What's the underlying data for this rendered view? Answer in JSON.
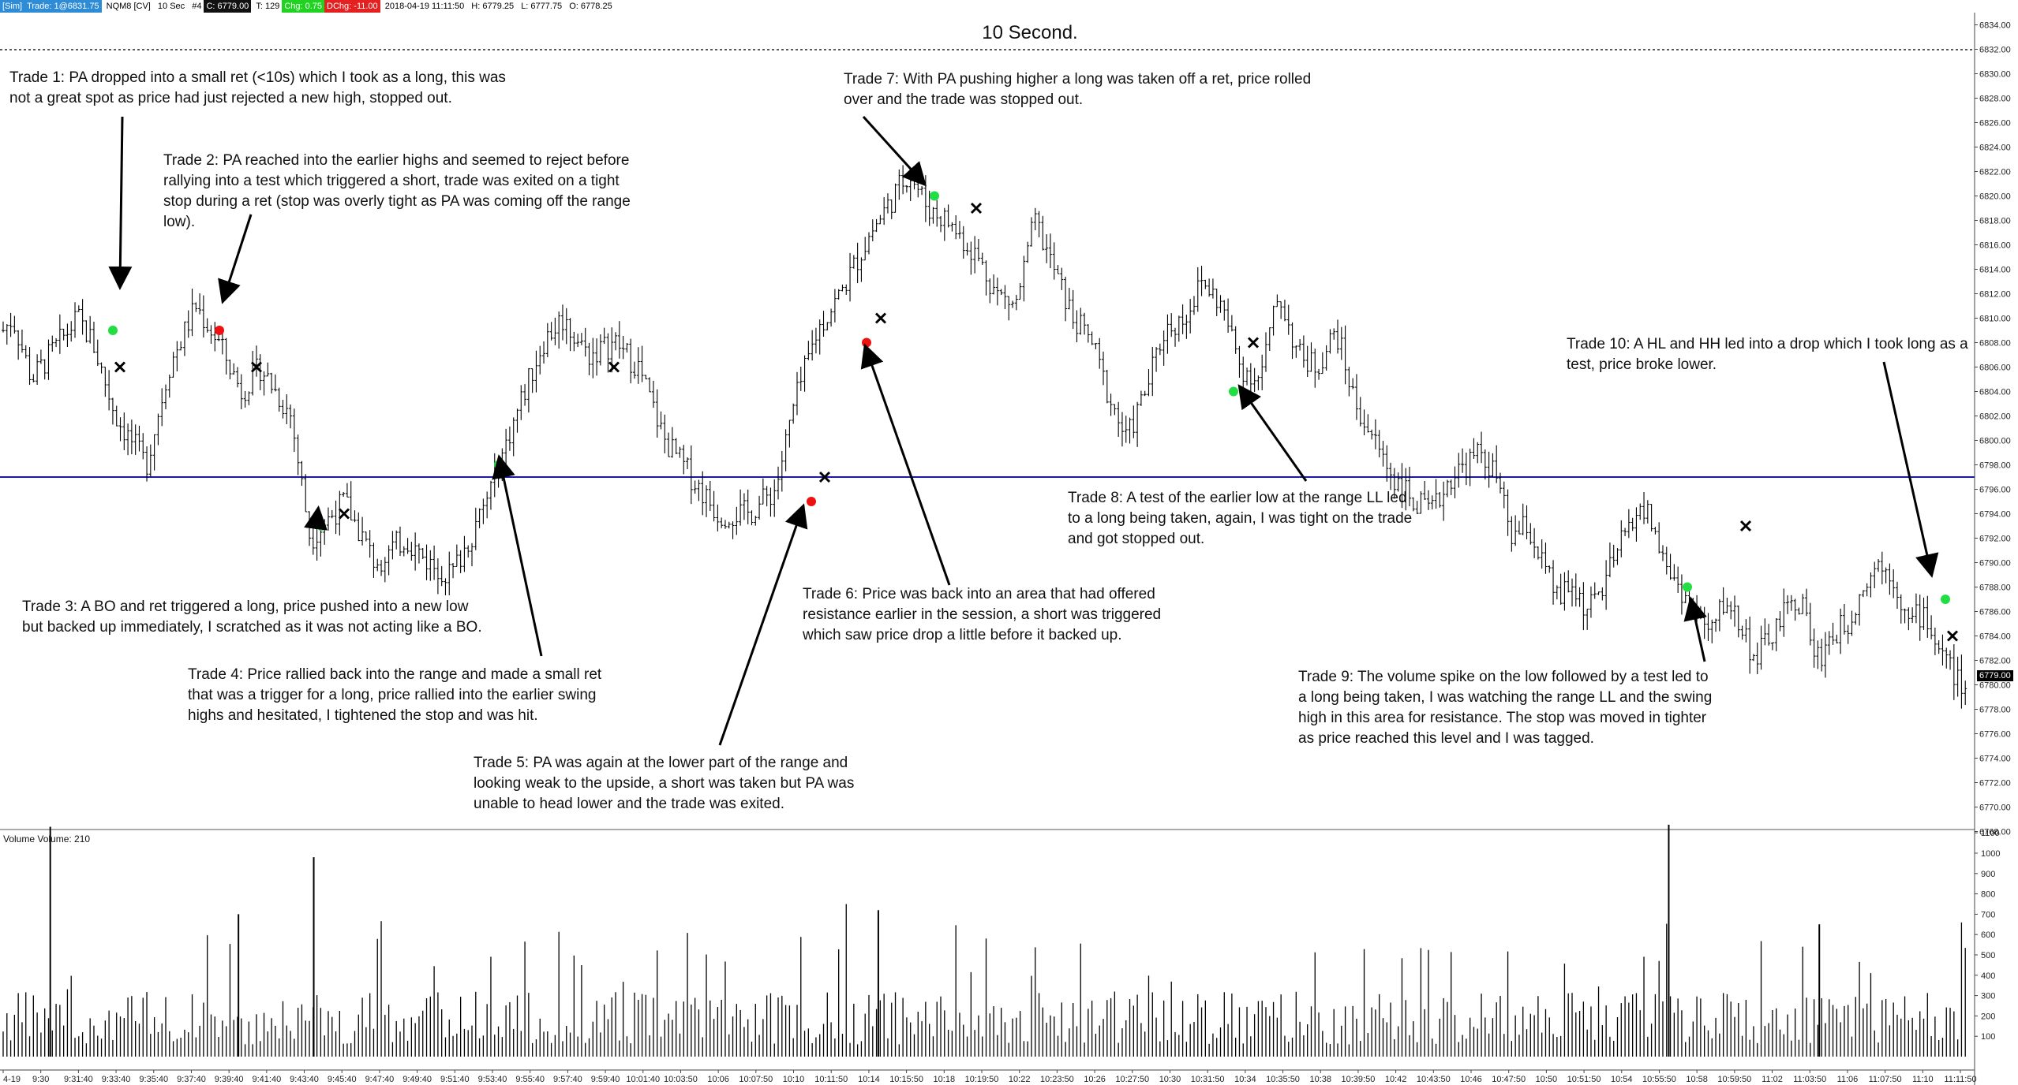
{
  "header": {
    "account": "[Sim]",
    "trade": "Trade: 1@6831.75",
    "instrument": "NQM8 [CV]",
    "period": "10 Sec",
    "bars_tag": "#4",
    "close": "C: 6779.00",
    "ticks": "T: 129",
    "chg": "Chg: 0.75",
    "dchg": "DChg: -11.00",
    "datetime": "2018-04-19 11:11:50",
    "high": "H: 6779.25",
    "low": "L: 6777.75",
    "open": "O: 6778.25"
  },
  "chart_data": [
    {
      "type": "candlestick",
      "title": "10 Second.",
      "ylim": [
        6766,
        6836
      ],
      "y_ticks": [
        "6834.00",
        "6832.00",
        "6830.00",
        "6828.00",
        "6826.00",
        "6824.00",
        "6822.00",
        "6820.00",
        "6818.00",
        "6816.00",
        "6814.00",
        "6812.00",
        "6810.00",
        "6808.00",
        "6806.00",
        "6804.00",
        "6802.00",
        "6800.00",
        "6798.00",
        "6796.00",
        "6794.00",
        "6792.00",
        "6790.00",
        "6788.00",
        "6786.00",
        "6784.00",
        "6782.00",
        "6780.00",
        "6778.00",
        "6776.00",
        "6774.00",
        "6772.00",
        "6770.00",
        "6768.00"
      ],
      "last_price": "6779.00",
      "horizontal_line": 6797,
      "price_path": [
        [
          9.25,
          6809
        ],
        [
          9.5,
          6810
        ],
        [
          9.8,
          6807
        ],
        [
          10.0,
          6805
        ],
        [
          11.2,
          6810
        ],
        [
          11.6,
          6808
        ],
        [
          12.2,
          6802
        ],
        [
          13.0,
          6798
        ],
        [
          13.6,
          6806
        ],
        [
          14.3,
          6811
        ],
        [
          14.9,
          6808
        ],
        [
          15.5,
          6804
        ],
        [
          16.0,
          6806
        ],
        [
          16.8,
          6802
        ],
        [
          17.3,
          6792
        ],
        [
          18.2,
          6795
        ],
        [
          19.0,
          6790
        ],
        [
          19.8,
          6792
        ],
        [
          20.4,
          6790
        ],
        [
          21.0,
          6789
        ],
        [
          21.8,
          6794
        ],
        [
          22.8,
          6803
        ],
        [
          23.4,
          6808
        ],
        [
          23.9,
          6810
        ],
        [
          24.6,
          6807
        ],
        [
          25.3,
          6808
        ],
        [
          25.9,
          6806
        ],
        [
          26.6,
          6800
        ],
        [
          27.3,
          6797
        ],
        [
          28.0,
          6794
        ],
        [
          28.8,
          6794
        ],
        [
          29.5,
          6796
        ],
        [
          30.0,
          6803
        ],
        [
          30.6,
          6809
        ],
        [
          31.2,
          6812
        ],
        [
          32.0,
          6817
        ],
        [
          32.6,
          6820
        ],
        [
          33.0,
          6822
        ],
        [
          33.5,
          6819
        ],
        [
          34.0,
          6818
        ],
        [
          34.8,
          6815
        ],
        [
          35.3,
          6812
        ],
        [
          35.8,
          6811
        ],
        [
          36.3,
          6818
        ],
        [
          36.8,
          6814
        ],
        [
          37.3,
          6810
        ],
        [
          37.8,
          6808
        ],
        [
          38.2,
          6804
        ],
        [
          38.7,
          6800
        ],
        [
          39.2,
          6804
        ],
        [
          39.7,
          6809
        ],
        [
          40.2,
          6810
        ],
        [
          40.7,
          6813
        ],
        [
          41.2,
          6811
        ],
        [
          41.7,
          6806
        ],
        [
          42.2,
          6805
        ],
        [
          42.7,
          6812
        ],
        [
          43.2,
          6807
        ],
        [
          43.7,
          6806
        ],
        [
          44.2,
          6809
        ],
        [
          44.7,
          6803
        ],
        [
          45.2,
          6800
        ],
        [
          45.7,
          6797
        ],
        [
          46.2,
          6795
        ],
        [
          46.7,
          6794
        ],
        [
          47.2,
          6797
        ],
        [
          47.6,
          6798
        ],
        [
          48.0,
          6799
        ],
        [
          48.4,
          6797
        ],
        [
          48.8,
          6792
        ],
        [
          49.2,
          6793
        ],
        [
          49.6,
          6790
        ],
        [
          50.0,
          6787
        ],
        [
          50.4,
          6788
        ],
        [
          50.8,
          6786
        ],
        [
          51.2,
          6788
        ],
        [
          51.6,
          6791
        ],
        [
          52.0,
          6794
        ],
        [
          52.4,
          6794
        ],
        [
          52.8,
          6790
        ],
        [
          53.2,
          6788
        ],
        [
          53.6,
          6786
        ],
        [
          54.0,
          6784
        ],
        [
          54.4,
          6787
        ],
        [
          54.8,
          6785
        ],
        [
          55.2,
          6782
        ],
        [
          55.6,
          6784
        ],
        [
          56.0,
          6786
        ],
        [
          56.4,
          6787
        ],
        [
          56.8,
          6782
        ],
        [
          57.2,
          6784
        ],
        [
          57.6,
          6785
        ],
        [
          58.0,
          6788
        ],
        [
          58.4,
          6790
        ],
        [
          58.8,
          6789
        ],
        [
          59.2,
          6785
        ],
        [
          59.6,
          6786
        ],
        [
          60.0,
          6783
        ],
        [
          60.4,
          6781
        ],
        [
          60.7,
          6779
        ]
      ],
      "x_ticks": [
        "4-19",
        "9:30",
        "9:31:40",
        "9:33:40",
        "9:35:40",
        "9:37:40",
        "9:39:40",
        "9:41:40",
        "9:43:40",
        "9:45:40",
        "9:47:40",
        "9:49:40",
        "9:51:40",
        "9:53:40",
        "9:55:40",
        "9:57:40",
        "9:59:40",
        "10:01:40",
        "10:03:50",
        "10:06",
        "10:07:50",
        "10:10",
        "10:11:50",
        "10:14",
        "10:15:50",
        "10:18",
        "10:19:50",
        "10:22",
        "10:23:50",
        "10:26",
        "10:27:50",
        "10:30",
        "10:31:50",
        "10:34",
        "10:35:50",
        "10:38",
        "10:39:50",
        "10:42",
        "10:43:50",
        "10:46",
        "10:47:50",
        "10:50",
        "10:51:50",
        "10:54",
        "10:55:50",
        "10:58",
        "10:59:50",
        "11:02",
        "11:03:50",
        "11:06",
        "11:07:50",
        "11:10",
        "11:11:50"
      ],
      "trades": [
        {
          "n": 1,
          "dir": "long",
          "entry": 6809,
          "exit": 6806
        },
        {
          "n": 2,
          "dir": "short",
          "entry": 6809,
          "exit": 6806
        },
        {
          "n": 3,
          "dir": "long",
          "entry": 6793,
          "exit": 6794
        },
        {
          "n": 4,
          "dir": "long",
          "entry": 6798,
          "exit": 6806
        },
        {
          "n": 5,
          "dir": "short",
          "entry": 6795,
          "exit": 6797
        },
        {
          "n": 6,
          "dir": "short",
          "entry": 6808,
          "exit": 6810
        },
        {
          "n": 7,
          "dir": "long",
          "entry": 6820,
          "exit": 6819
        },
        {
          "n": 8,
          "dir": "long",
          "entry": 6804,
          "exit": 6808
        },
        {
          "n": 9,
          "dir": "long",
          "entry": 6788,
          "exit": 6793
        },
        {
          "n": 10,
          "dir": "long",
          "entry": 6787,
          "exit": 6784
        }
      ]
    },
    {
      "type": "bar",
      "title": "Volume  Volume: 210",
      "ylim": [
        0,
        1200
      ],
      "y_ticks": [
        "1100",
        "1000",
        "900",
        "800",
        "700",
        "600",
        "500",
        "400",
        "300",
        "200",
        "100"
      ],
      "notable_spikes": [
        {
          "time": "9:30",
          "value": 1130
        },
        {
          "time": "9:43:40",
          "value": 980
        },
        {
          "time": "9:39:40",
          "value": 700
        },
        {
          "time": "10:14",
          "value": 720
        },
        {
          "time": "10:55:50",
          "value": 1140
        },
        {
          "time": "11:03:50",
          "value": 650
        }
      ]
    }
  ],
  "annotations": [
    {
      "id": "trade-1",
      "lines": [
        "Trade 1:  PA dropped into a small ret (<10s) which I took as a long, this was",
        "not a great spot as price had just rejected a new high, stopped out."
      ]
    },
    {
      "id": "trade-2",
      "lines": [
        "Trade 2:  PA reached into the earlier highs and seemed to reject before",
        "rallying into a test which triggered a short, trade was exited on a tight",
        "stop during a ret (stop was overly tight as PA was coming off the range",
        "low)."
      ]
    },
    {
      "id": "trade-3",
      "lines": [
        "Trade 3:  A BO and ret triggered a long, price pushed into a new low",
        "but backed up immediately, I scratched as it was not acting like a BO."
      ]
    },
    {
      "id": "trade-4",
      "lines": [
        "Trade 4:  Price rallied back into the range and made a small ret",
        "that was a trigger for a long, price rallied into the earlier swing",
        "highs and hesitated, I tightened the stop and was hit."
      ]
    },
    {
      "id": "trade-5",
      "lines": [
        "Trade 5:  PA was again at the lower part of the range and",
        "looking weak to the upside, a short was taken but PA was",
        "unable to head lower and the trade was exited."
      ]
    },
    {
      "id": "trade-6",
      "lines": [
        "Trade 6:  Price was back into an area that had offered",
        "resistance earlier in the session, a short was triggered",
        "which saw price drop a little before it backed up."
      ]
    },
    {
      "id": "trade-7",
      "lines": [
        "Trade 7:  With PA pushing higher a long was taken off a ret, price rolled",
        "over and the trade was stopped out."
      ]
    },
    {
      "id": "trade-8",
      "lines": [
        "Trade 8:  A test of the earlier low at the range LL led",
        "to a long being taken, again, I was tight on the trade",
        "and got stopped out."
      ]
    },
    {
      "id": "trade-9",
      "lines": [
        "Trade 9:  The volume spike on the low followed by a test led to",
        "a long being taken, I was watching the range LL and the swing",
        "high in this area for resistance.  The stop was moved in tighter",
        "as price reached this level and I was tagged."
      ]
    },
    {
      "id": "trade-10",
      "lines": [
        "Trade 10:  A HL and HH led into a drop which I took long as a",
        "test, price broke lower."
      ]
    }
  ],
  "colors": {
    "long_entry": "#22dd44",
    "short_entry": "#ee1111",
    "exit": "#000000",
    "level_line": "#1a1aa8",
    "bars": "#000000",
    "volume": "#000000"
  }
}
